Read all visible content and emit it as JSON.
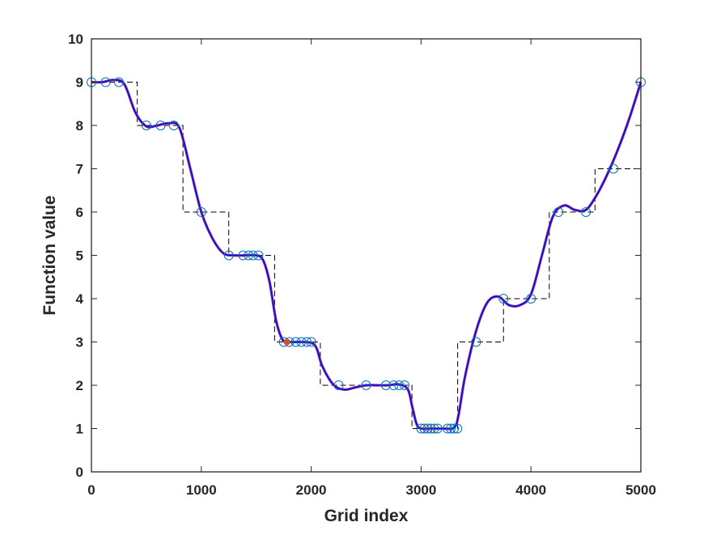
{
  "chart_data": {
    "type": "line",
    "title": "",
    "xlabel": "Grid index",
    "ylabel": "Function value",
    "xlim": [
      0,
      5000
    ],
    "ylim": [
      0,
      10
    ],
    "xticks": [
      0,
      1000,
      2000,
      3000,
      4000,
      5000
    ],
    "yticks": [
      0,
      1,
      2,
      3,
      4,
      5,
      6,
      7,
      8,
      9,
      10
    ],
    "xtick_labels": [
      "0",
      "1000",
      "2000",
      "3000",
      "4000",
      "5000"
    ],
    "ytick_labels": [
      "0",
      "1",
      "2",
      "3",
      "4",
      "5",
      "6",
      "7",
      "8",
      "9",
      "10"
    ],
    "grid": false,
    "box": true,
    "colors": {
      "step": "#000000",
      "smooth": "#7e2f8e",
      "smooth_inner": "#0000ff",
      "markers": "#0072bd",
      "highlight": "#d95319"
    },
    "step_function": {
      "x": [
        0,
        417,
        833,
        1250,
        1667,
        2083,
        2500,
        2917,
        3333,
        3750,
        4167,
        4583,
        5000
      ],
      "y": [
        9,
        8,
        6,
        5,
        3,
        2,
        2,
        1,
        3,
        4,
        6,
        7,
        9
      ]
    },
    "smooth_curve": {
      "x": [
        0,
        100,
        200,
        300,
        400,
        500,
        600,
        700,
        800,
        900,
        1000,
        1100,
        1200,
        1300,
        1400,
        1500,
        1560,
        1620,
        1680,
        1740,
        1800,
        1900,
        2000,
        2050,
        2100,
        2200,
        2300,
        2400,
        2500,
        2600,
        2700,
        2800,
        2880,
        2920,
        2960,
        3000,
        3100,
        3200,
        3300,
        3340,
        3400,
        3500,
        3600,
        3700,
        3800,
        3900,
        4000,
        4100,
        4200,
        4300,
        4400,
        4500,
        4600,
        4700,
        4800,
        4900,
        5000
      ],
      "y": [
        9.0,
        9.0,
        9.05,
        8.95,
        8.3,
        7.98,
        8.0,
        8.05,
        7.95,
        7.0,
        6.0,
        5.4,
        5.05,
        5.0,
        5.0,
        5.0,
        4.9,
        4.4,
        3.5,
        3.05,
        3.0,
        3.0,
        2.98,
        2.85,
        2.45,
        2.02,
        1.9,
        1.95,
        2.0,
        2.0,
        2.0,
        2.02,
        1.9,
        1.5,
        1.1,
        1.0,
        1.0,
        1.0,
        1.02,
        1.3,
        2.2,
        3.25,
        3.9,
        4.05,
        3.85,
        3.85,
        4.1,
        5.0,
        5.9,
        6.15,
        6.05,
        6.05,
        6.4,
        6.9,
        7.5,
        8.2,
        9.0
      ]
    },
    "sample_points": {
      "x": [
        0,
        130,
        250,
        500,
        630,
        750,
        1000,
        1250,
        1380,
        1430,
        1470,
        1520,
        1750,
        1800,
        1860,
        1910,
        1960,
        2000,
        2250,
        2500,
        2680,
        2750,
        2800,
        2850,
        3000,
        3030,
        3060,
        3090,
        3120,
        3150,
        3240,
        3270,
        3300,
        3330,
        3500,
        3750,
        4000,
        4250,
        4500,
        4750,
        5000
      ],
      "y": [
        9,
        9,
        9,
        8,
        8,
        8,
        6,
        5,
        5,
        5,
        5,
        5,
        3,
        3,
        3,
        3,
        3,
        3,
        2,
        2,
        2,
        2,
        2,
        2,
        1,
        1,
        1,
        1,
        1,
        1,
        1,
        1,
        1,
        1,
        3,
        4,
        4,
        6,
        6,
        7,
        9
      ]
    },
    "highlight_point": {
      "x": 1780,
      "y": 3
    }
  }
}
